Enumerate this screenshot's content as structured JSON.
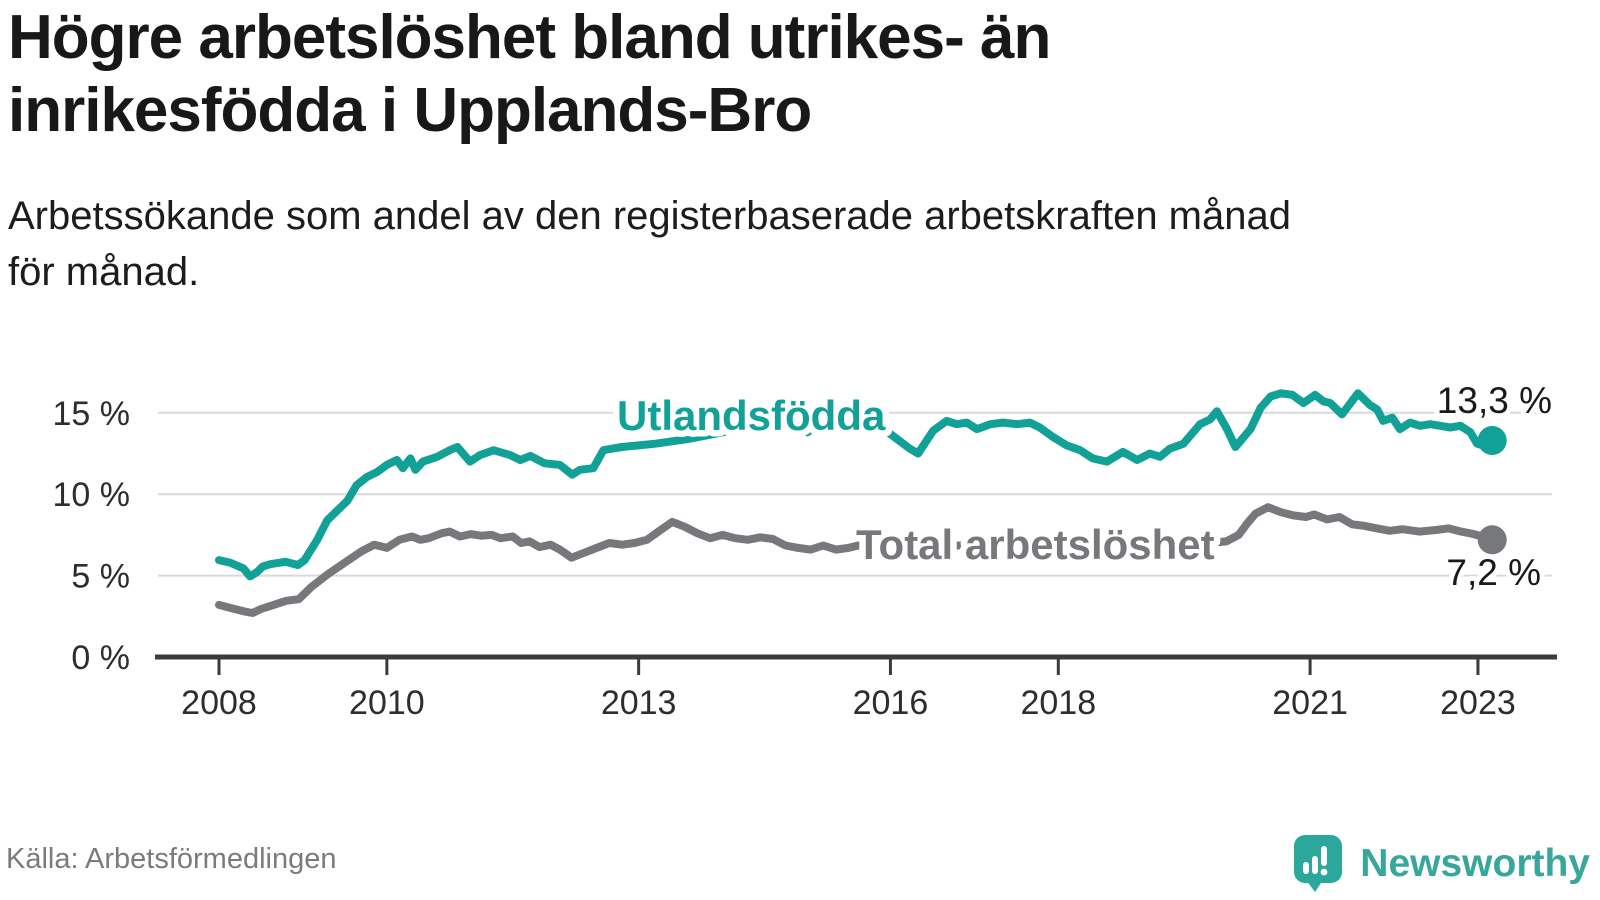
{
  "header": {
    "title_lines": [
      "Högre arbetslöshet bland utrikes- än",
      "inrikesfödda i Upplands-Bro"
    ],
    "subtitle_lines": [
      "Arbetssökande som andel av den registerbaserade arbetskraften månad",
      "för månad."
    ]
  },
  "footer": {
    "source": "Källa: Arbetsförmedlingen",
    "brand": "Newsworthy"
  },
  "chart_data": {
    "type": "line",
    "title": "Högre arbetslöshet bland utrikes- än inrikesfödda i Upplands-Bro",
    "subtitle": "Arbetssökande som andel av den registerbaserade arbetskraften månad för månad.",
    "source": "Källa: Arbetsförmedlingen",
    "grid": true,
    "grid_color": "#d9d9d9",
    "axis_color": "#3b3b3b",
    "legend_position": "inline-labels",
    "x_axis": {
      "ticks": [
        2008,
        2010,
        2013,
        2016,
        2018,
        2021,
        2023
      ],
      "tick_labels": [
        "2008",
        "2010",
        "2013",
        "2016",
        "2018",
        "2021",
        "2023"
      ],
      "range": [
        2007.3,
        2023.9
      ]
    },
    "y_axis": {
      "ticks": [
        0,
        5,
        10,
        15
      ],
      "tick_labels": [
        "0 %",
        "5 %",
        "10 %",
        "15 %"
      ],
      "range": [
        0,
        16.6
      ],
      "unit": "%"
    },
    "series": [
      {
        "name": "Utlandsfödda",
        "color": "#12a197",
        "end_label": "13,3 %",
        "end_value": 13.3,
        "points": [
          [
            2008.0,
            5.95
          ],
          [
            2008.13,
            5.8
          ],
          [
            2008.29,
            5.45
          ],
          [
            2008.37,
            4.95
          ],
          [
            2008.45,
            5.2
          ],
          [
            2008.52,
            5.55
          ],
          [
            2008.61,
            5.7
          ],
          [
            2008.79,
            5.85
          ],
          [
            2008.94,
            5.65
          ],
          [
            2009.02,
            5.95
          ],
          [
            2009.17,
            7.2
          ],
          [
            2009.29,
            8.4
          ],
          [
            2009.41,
            9.0
          ],
          [
            2009.53,
            9.6
          ],
          [
            2009.64,
            10.55
          ],
          [
            2009.76,
            11.05
          ],
          [
            2009.88,
            11.35
          ],
          [
            2010.0,
            11.8
          ],
          [
            2010.12,
            12.1
          ],
          [
            2010.19,
            11.6
          ],
          [
            2010.28,
            12.2
          ],
          [
            2010.34,
            11.5
          ],
          [
            2010.43,
            12.0
          ],
          [
            2010.6,
            12.3
          ],
          [
            2010.75,
            12.7
          ],
          [
            2010.84,
            12.9
          ],
          [
            2010.99,
            12.0
          ],
          [
            2011.11,
            12.4
          ],
          [
            2011.27,
            12.7
          ],
          [
            2011.47,
            12.4
          ],
          [
            2011.59,
            12.1
          ],
          [
            2011.71,
            12.35
          ],
          [
            2011.88,
            11.9
          ],
          [
            2012.06,
            11.8
          ],
          [
            2012.21,
            11.2
          ],
          [
            2012.3,
            11.5
          ],
          [
            2012.46,
            11.6
          ],
          [
            2012.58,
            12.7
          ],
          [
            2012.69,
            12.8
          ],
          [
            2012.8,
            12.9
          ],
          [
            2013.0,
            13.0
          ],
          [
            2013.2,
            13.1
          ],
          [
            2013.4,
            13.25
          ],
          [
            2013.6,
            13.4
          ],
          [
            2013.8,
            13.6
          ],
          [
            2014.0,
            13.8
          ],
          [
            2014.2,
            14.0
          ],
          [
            2014.4,
            14.1
          ],
          [
            2014.6,
            14.15
          ],
          [
            2014.8,
            14.2
          ],
          [
            2015.01,
            13.8
          ],
          [
            2015.2,
            14.4
          ],
          [
            2015.48,
            15.0
          ],
          [
            2015.64,
            15.0
          ],
          [
            2015.79,
            14.5
          ],
          [
            2016.0,
            13.7
          ],
          [
            2016.23,
            12.8
          ],
          [
            2016.33,
            12.5
          ],
          [
            2016.51,
            13.9
          ],
          [
            2016.67,
            14.5
          ],
          [
            2016.79,
            14.3
          ],
          [
            2016.91,
            14.4
          ],
          [
            2017.03,
            14.0
          ],
          [
            2017.19,
            14.3
          ],
          [
            2017.34,
            14.4
          ],
          [
            2017.51,
            14.3
          ],
          [
            2017.66,
            14.4
          ],
          [
            2017.78,
            14.1
          ],
          [
            2017.94,
            13.5
          ],
          [
            2018.1,
            13.0
          ],
          [
            2018.26,
            12.7
          ],
          [
            2018.41,
            12.2
          ],
          [
            2018.58,
            12.0
          ],
          [
            2018.77,
            12.6
          ],
          [
            2018.94,
            12.1
          ],
          [
            2019.09,
            12.5
          ],
          [
            2019.21,
            12.3
          ],
          [
            2019.33,
            12.8
          ],
          [
            2019.49,
            13.1
          ],
          [
            2019.69,
            14.3
          ],
          [
            2019.81,
            14.6
          ],
          [
            2019.89,
            15.1
          ],
          [
            2020.01,
            14.0
          ],
          [
            2020.11,
            12.9
          ],
          [
            2020.29,
            14.0
          ],
          [
            2020.41,
            15.3
          ],
          [
            2020.53,
            16.0
          ],
          [
            2020.65,
            16.2
          ],
          [
            2020.79,
            16.1
          ],
          [
            2020.92,
            15.6
          ],
          [
            2021.06,
            16.1
          ],
          [
            2021.16,
            15.7
          ],
          [
            2021.24,
            15.6
          ],
          [
            2021.38,
            14.9
          ],
          [
            2021.57,
            16.2
          ],
          [
            2021.71,
            15.5
          ],
          [
            2021.8,
            15.2
          ],
          [
            2021.87,
            14.5
          ],
          [
            2021.98,
            14.7
          ],
          [
            2022.07,
            14.0
          ],
          [
            2022.19,
            14.4
          ],
          [
            2022.31,
            14.2
          ],
          [
            2022.43,
            14.3
          ],
          [
            2022.55,
            14.2
          ],
          [
            2022.67,
            14.1
          ],
          [
            2022.79,
            14.2
          ],
          [
            2022.91,
            13.8
          ],
          [
            2022.99,
            13.1
          ],
          [
            2023.06,
            13.0
          ],
          [
            2023.17,
            13.3
          ]
        ]
      },
      {
        "name": "Total arbetslöshet",
        "color": "#77787b",
        "end_label": "7,2 %",
        "end_value": 7.2,
        "points": [
          [
            2008.0,
            3.2
          ],
          [
            2008.15,
            3.0
          ],
          [
            2008.3,
            2.8
          ],
          [
            2008.4,
            2.7
          ],
          [
            2008.5,
            2.95
          ],
          [
            2008.65,
            3.2
          ],
          [
            2008.8,
            3.45
          ],
          [
            2008.95,
            3.55
          ],
          [
            2009.1,
            4.3
          ],
          [
            2009.3,
            5.1
          ],
          [
            2009.5,
            5.8
          ],
          [
            2009.7,
            6.5
          ],
          [
            2009.85,
            6.9
          ],
          [
            2010.0,
            6.7
          ],
          [
            2010.15,
            7.2
          ],
          [
            2010.3,
            7.4
          ],
          [
            2010.4,
            7.2
          ],
          [
            2010.5,
            7.3
          ],
          [
            2010.65,
            7.6
          ],
          [
            2010.75,
            7.7
          ],
          [
            2010.87,
            7.4
          ],
          [
            2011.0,
            7.55
          ],
          [
            2011.12,
            7.45
          ],
          [
            2011.25,
            7.5
          ],
          [
            2011.35,
            7.3
          ],
          [
            2011.5,
            7.4
          ],
          [
            2011.6,
            7.0
          ],
          [
            2011.7,
            7.1
          ],
          [
            2011.82,
            6.75
          ],
          [
            2011.95,
            6.9
          ],
          [
            2012.06,
            6.6
          ],
          [
            2012.2,
            6.1
          ],
          [
            2012.35,
            6.4
          ],
          [
            2012.5,
            6.7
          ],
          [
            2012.65,
            7.0
          ],
          [
            2012.8,
            6.9
          ],
          [
            2012.95,
            7.0
          ],
          [
            2013.1,
            7.2
          ],
          [
            2013.25,
            7.75
          ],
          [
            2013.4,
            8.3
          ],
          [
            2013.55,
            8.0
          ],
          [
            2013.7,
            7.6
          ],
          [
            2013.85,
            7.3
          ],
          [
            2014.0,
            7.5
          ],
          [
            2014.15,
            7.3
          ],
          [
            2014.3,
            7.2
          ],
          [
            2014.45,
            7.35
          ],
          [
            2014.6,
            7.25
          ],
          [
            2014.75,
            6.85
          ],
          [
            2014.9,
            6.7
          ],
          [
            2015.05,
            6.6
          ],
          [
            2015.2,
            6.85
          ],
          [
            2015.35,
            6.6
          ],
          [
            2015.5,
            6.7
          ],
          [
            2015.65,
            6.9
          ],
          [
            2015.8,
            7.05
          ],
          [
            2016.0,
            6.9
          ],
          [
            2016.2,
            6.7
          ],
          [
            2016.4,
            6.6
          ],
          [
            2016.6,
            6.7
          ],
          [
            2016.8,
            6.85
          ],
          [
            2017.0,
            6.9
          ],
          [
            2017.2,
            6.8
          ],
          [
            2017.4,
            6.75
          ],
          [
            2017.6,
            6.8
          ],
          [
            2017.8,
            6.7
          ],
          [
            2018.0,
            6.5
          ],
          [
            2018.2,
            6.35
          ],
          [
            2018.4,
            6.25
          ],
          [
            2018.6,
            6.3
          ],
          [
            2018.8,
            6.4
          ],
          [
            2019.0,
            6.5
          ],
          [
            2019.2,
            6.6
          ],
          [
            2019.4,
            6.75
          ],
          [
            2019.6,
            6.9
          ],
          [
            2019.8,
            7.0
          ],
          [
            2020.0,
            7.1
          ],
          [
            2020.15,
            7.5
          ],
          [
            2020.25,
            8.2
          ],
          [
            2020.35,
            8.8
          ],
          [
            2020.5,
            9.2
          ],
          [
            2020.65,
            8.9
          ],
          [
            2020.8,
            8.7
          ],
          [
            2020.95,
            8.6
          ],
          [
            2021.05,
            8.75
          ],
          [
            2021.2,
            8.45
          ],
          [
            2021.35,
            8.6
          ],
          [
            2021.5,
            8.15
          ],
          [
            2021.65,
            8.05
          ],
          [
            2021.8,
            7.9
          ],
          [
            2021.95,
            7.75
          ],
          [
            2022.1,
            7.85
          ],
          [
            2022.3,
            7.7
          ],
          [
            2022.5,
            7.8
          ],
          [
            2022.65,
            7.9
          ],
          [
            2022.8,
            7.7
          ],
          [
            2022.95,
            7.55
          ],
          [
            2023.05,
            7.4
          ],
          [
            2023.17,
            7.2
          ]
        ]
      }
    ]
  }
}
